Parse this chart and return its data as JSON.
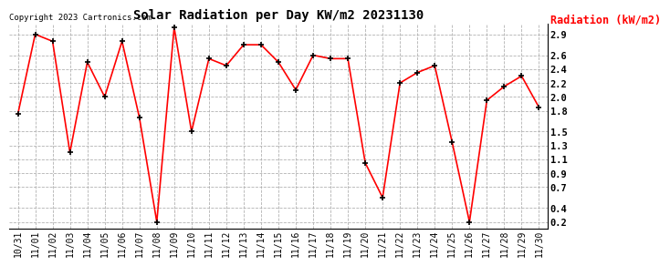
{
  "title": "Solar Radiation per Day KW/m2 20231130",
  "ylabel": "Radiation (kW/m2)",
  "copyright_text": "Copyright 2023 Cartronics.com",
  "line_color": "red",
  "marker_color": "black",
  "background_color": "#ffffff",
  "grid_color": "#aaaaaa",
  "ylim": [
    0.1,
    3.05
  ],
  "yticks": [
    0.2,
    0.4,
    0.7,
    0.9,
    1.1,
    1.3,
    1.5,
    1.8,
    2.0,
    2.2,
    2.4,
    2.6,
    2.9
  ],
  "dates": [
    "10/31",
    "11/01",
    "11/02",
    "11/03",
    "11/04",
    "11/05",
    "11/06",
    "11/07",
    "11/08",
    "11/09",
    "11/10",
    "11/11",
    "11/12",
    "11/13",
    "11/14",
    "11/15",
    "11/16",
    "11/17",
    "11/18",
    "11/19",
    "11/20",
    "11/21",
    "11/22",
    "11/23",
    "11/24",
    "11/25",
    "11/26",
    "11/27",
    "11/28",
    "11/29",
    "11/30"
  ],
  "values": [
    1.75,
    2.9,
    2.8,
    1.2,
    2.5,
    2.0,
    2.8,
    1.7,
    0.2,
    3.0,
    1.5,
    2.55,
    2.45,
    2.75,
    2.75,
    2.5,
    2.1,
    2.6,
    2.55,
    2.55,
    1.05,
    0.55,
    2.2,
    2.35,
    2.45,
    1.35,
    0.2,
    1.95,
    2.15,
    2.3,
    1.85
  ]
}
